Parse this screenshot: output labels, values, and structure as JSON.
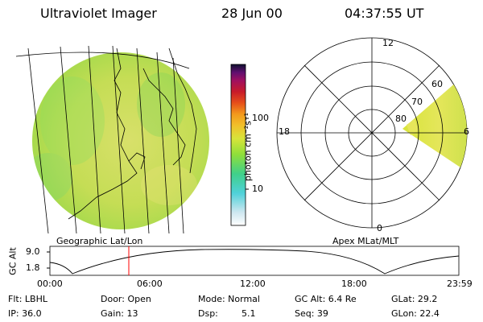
{
  "header": {
    "instrument": "Ultraviolet Imager",
    "date": "28 Jun 00",
    "time": "04:37:55 UT"
  },
  "colorbar": {
    "unit_label": "photon cm⁻²s⁻¹",
    "tick_100": "100",
    "tick_10": "10",
    "colors": [
      "#ffffff",
      "#cfe7f0",
      "#4fd1d9",
      "#3fd08a",
      "#8fdf3a",
      "#d8e43a",
      "#f1c02a",
      "#f39a1c",
      "#e6501a",
      "#c81b2a",
      "#a01060",
      "#601070",
      "#101030"
    ]
  },
  "left_panel": {
    "caption": "Geographic Lat/Lon"
  },
  "right_panel": {
    "caption": "Apex MLat/MLT",
    "mlt_labels": {
      "top": "12",
      "left": "18",
      "right": "6",
      "bottom": "0"
    },
    "lat_labels": [
      "60",
      "70",
      "80"
    ]
  },
  "altitude_plot": {
    "ylabel": "GC Alt",
    "yticks": [
      "9.0",
      "1.8"
    ],
    "xticks": [
      "00:00",
      "06:00",
      "12:00",
      "18:00",
      "23:59"
    ],
    "marker_time_hours": 4.63,
    "marker_color": "#ff0000"
  },
  "info": {
    "flt": "Flt: LBHL",
    "ip": "IP: 36.0",
    "door": "Door: Open",
    "gain": "Gain: 13",
    "mode": "Mode: Normal",
    "dsp_label": "Dsp:",
    "dsp_value": "5.1",
    "gcalt": "GC Alt: 6.4 Re",
    "seq": "Seq: 39",
    "glat": "GLat:  29.2",
    "glon": "GLon:  22.4"
  }
}
